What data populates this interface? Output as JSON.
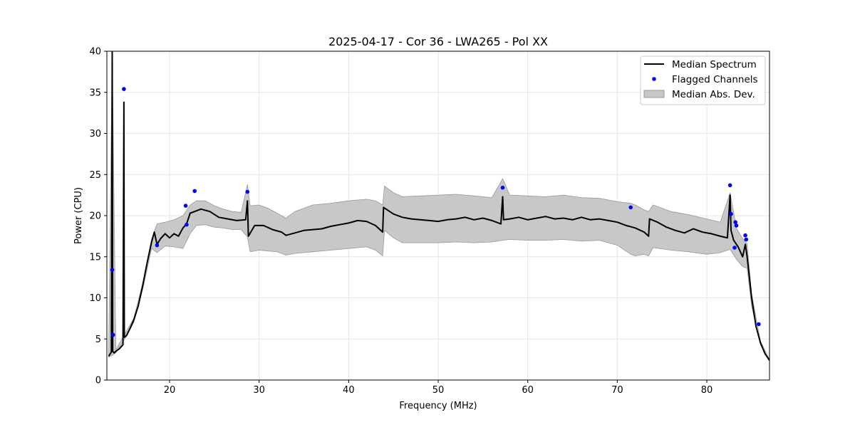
{
  "chart_data": {
    "type": "line",
    "title": "2025-04-17 - Cor 36 - LWA265 - Pol XX",
    "xlabel": "Frequency (MHz)",
    "ylabel": "Power (CPU)",
    "xlim": [
      13,
      87
    ],
    "ylim": [
      0,
      40
    ],
    "xticks": [
      20,
      30,
      40,
      50,
      60,
      70,
      80
    ],
    "yticks": [
      0,
      5,
      10,
      15,
      20,
      25,
      30,
      35,
      40
    ],
    "grid": true,
    "legend_position": "top-right",
    "colors": {
      "median": "#000000",
      "flagged": "#0000ff",
      "band_fill": "#c8c8c8",
      "band_edge": "#999999"
    },
    "series": [
      {
        "name": "Median Spectrum",
        "kind": "line",
        "points": [
          [
            13.2,
            2.9
          ],
          [
            13.5,
            3.4
          ],
          [
            13.6,
            40
          ],
          [
            13.65,
            3.5
          ],
          [
            13.8,
            3.3
          ],
          [
            14.0,
            3.5
          ],
          [
            14.4,
            3.8
          ],
          [
            14.8,
            4.3
          ],
          [
            14.9,
            33.8
          ],
          [
            14.95,
            5.2
          ],
          [
            15.2,
            5.4
          ],
          [
            15.6,
            6.3
          ],
          [
            16.0,
            7.3
          ],
          [
            16.5,
            9.0
          ],
          [
            17.0,
            11.5
          ],
          [
            17.5,
            14.3
          ],
          [
            18.0,
            16.8
          ],
          [
            18.3,
            18.0
          ],
          [
            18.6,
            16.5
          ],
          [
            19.0,
            17.2
          ],
          [
            19.5,
            17.8
          ],
          [
            20.0,
            17.3
          ],
          [
            20.5,
            17.8
          ],
          [
            21.0,
            17.5
          ],
          [
            21.5,
            18.5
          ],
          [
            21.9,
            19.0
          ],
          [
            22.3,
            20.3
          ],
          [
            22.8,
            20.5
          ],
          [
            23.5,
            20.8
          ],
          [
            24.5,
            20.5
          ],
          [
            25.5,
            19.8
          ],
          [
            26.5,
            19.6
          ],
          [
            27.5,
            19.4
          ],
          [
            28.5,
            19.5
          ],
          [
            28.7,
            21.8
          ],
          [
            28.8,
            17.5
          ],
          [
            29.5,
            18.8
          ],
          [
            30.5,
            18.8
          ],
          [
            31.5,
            18.3
          ],
          [
            32.5,
            18.0
          ],
          [
            33.0,
            17.6
          ],
          [
            34.0,
            17.9
          ],
          [
            35.0,
            18.2
          ],
          [
            36.0,
            18.3
          ],
          [
            37.0,
            18.4
          ],
          [
            38.0,
            18.7
          ],
          [
            39.0,
            18.9
          ],
          [
            40.0,
            19.1
          ],
          [
            41.0,
            19.4
          ],
          [
            42.0,
            19.3
          ],
          [
            43.0,
            18.8
          ],
          [
            43.8,
            18.0
          ],
          [
            43.9,
            21.0
          ],
          [
            45.0,
            20.2
          ],
          [
            46.0,
            19.8
          ],
          [
            47.0,
            19.6
          ],
          [
            48.0,
            19.5
          ],
          [
            49.0,
            19.4
          ],
          [
            50.0,
            19.3
          ],
          [
            51.0,
            19.5
          ],
          [
            52.0,
            19.6
          ],
          [
            53.0,
            19.8
          ],
          [
            54.0,
            19.5
          ],
          [
            55.0,
            19.7
          ],
          [
            56.0,
            19.4
          ],
          [
            57.0,
            19.0
          ],
          [
            57.2,
            22.3
          ],
          [
            57.3,
            19.5
          ],
          [
            58.0,
            19.6
          ],
          [
            59.0,
            19.8
          ],
          [
            60.0,
            19.5
          ],
          [
            61.0,
            19.7
          ],
          [
            62.0,
            19.9
          ],
          [
            63.0,
            19.6
          ],
          [
            64.0,
            19.7
          ],
          [
            65.0,
            19.5
          ],
          [
            66.0,
            19.8
          ],
          [
            67.0,
            19.5
          ],
          [
            68.0,
            19.6
          ],
          [
            69.0,
            19.4
          ],
          [
            70.0,
            19.2
          ],
          [
            71.0,
            18.8
          ],
          [
            72.0,
            18.5
          ],
          [
            73.0,
            18.0
          ],
          [
            73.5,
            17.5
          ],
          [
            73.6,
            19.6
          ],
          [
            74.5,
            19.2
          ],
          [
            75.5,
            18.6
          ],
          [
            76.5,
            18.2
          ],
          [
            77.5,
            17.9
          ],
          [
            78.5,
            18.4
          ],
          [
            79.5,
            18.0
          ],
          [
            80.5,
            17.8
          ],
          [
            81.5,
            17.5
          ],
          [
            82.3,
            17.3
          ],
          [
            82.6,
            22.5
          ],
          [
            82.7,
            18.2
          ],
          [
            83.0,
            17.0
          ],
          [
            83.5,
            16.2
          ],
          [
            84.0,
            15.0
          ],
          [
            84.3,
            16.5
          ],
          [
            84.5,
            15.0
          ],
          [
            85.0,
            10.0
          ],
          [
            85.5,
            6.5
          ],
          [
            86.0,
            4.5
          ],
          [
            86.5,
            3.2
          ],
          [
            87.0,
            2.4
          ]
        ]
      },
      {
        "name": "Flagged Channels",
        "kind": "scatter",
        "points": [
          [
            13.6,
            13.4
          ],
          [
            13.7,
            5.5
          ],
          [
            14.9,
            35.4
          ],
          [
            18.6,
            16.4
          ],
          [
            21.8,
            21.2
          ],
          [
            21.9,
            18.9
          ],
          [
            22.8,
            23.0
          ],
          [
            28.7,
            22.9
          ],
          [
            57.2,
            23.4
          ],
          [
            71.5,
            21.0
          ],
          [
            82.6,
            23.7
          ],
          [
            82.7,
            20.2
          ],
          [
            83.1,
            16.1
          ],
          [
            83.2,
            19.2
          ],
          [
            83.3,
            18.8
          ],
          [
            84.3,
            17.6
          ],
          [
            84.4,
            17.1
          ],
          [
            85.8,
            6.8
          ]
        ]
      },
      {
        "name": "Median Abs. Dev.",
        "kind": "band",
        "x": [
          13.2,
          13.6,
          14.0,
          15.0,
          16.0,
          17.0,
          18.0,
          18.6,
          19.5,
          20.5,
          21.5,
          22.3,
          23.0,
          24.0,
          25.0,
          26.0,
          27.0,
          28.0,
          28.7,
          29.0,
          30.0,
          31.0,
          32.0,
          33.0,
          34.0,
          35.0,
          36.0,
          38.0,
          40.0,
          42.0,
          43.0,
          43.8,
          44.0,
          45.0,
          46.0,
          48.0,
          50.0,
          52.0,
          54.0,
          56.0,
          57.2,
          58.0,
          60.0,
          62.0,
          64.0,
          66.0,
          68.0,
          70.0,
          71.5,
          72.0,
          73.0,
          73.5,
          74.0,
          76.0,
          78.0,
          80.0,
          81.5,
          82.6,
          83.3,
          84.0,
          84.5,
          85.0,
          86.0,
          87.0
        ],
        "upper": [
          3.0,
          40,
          3.7,
          5.6,
          7.5,
          11.8,
          17.2,
          19.0,
          19.2,
          19.5,
          20.0,
          21.3,
          21.8,
          21.8,
          21.2,
          20.8,
          20.5,
          20.4,
          23.8,
          21.2,
          21.3,
          20.9,
          20.3,
          19.7,
          20.5,
          20.9,
          21.3,
          21.5,
          21.8,
          22.0,
          21.8,
          21.3,
          23.6,
          22.8,
          22.3,
          22.4,
          22.5,
          22.6,
          22.4,
          22.2,
          24.5,
          22.5,
          22.4,
          22.3,
          22.5,
          22.2,
          22.1,
          21.7,
          21.5,
          21.3,
          20.7,
          20.5,
          21.3,
          20.5,
          20.1,
          19.6,
          19.2,
          22.8,
          18.5,
          17.2,
          16.6,
          10.5,
          4.7,
          2.5
        ],
        "lower": [
          2.8,
          3.0,
          3.3,
          5.0,
          7.0,
          11.0,
          16.0,
          15.5,
          16.3,
          16.2,
          16.0,
          17.8,
          18.8,
          18.9,
          18.6,
          18.5,
          18.3,
          18.3,
          17.4,
          15.6,
          15.8,
          15.7,
          15.6,
          15.2,
          15.4,
          15.5,
          15.6,
          15.8,
          16.0,
          16.2,
          15.8,
          15.1,
          18.2,
          17.3,
          16.7,
          16.7,
          16.7,
          16.8,
          16.7,
          16.8,
          17.0,
          17.1,
          17.0,
          17.0,
          17.1,
          16.9,
          17.0,
          16.4,
          15.3,
          15.1,
          15.3,
          15.1,
          16.1,
          15.8,
          15.6,
          15.3,
          15.5,
          15.9,
          14.7,
          13.8,
          13.6,
          9.0,
          4.3,
          2.3
        ]
      }
    ]
  }
}
